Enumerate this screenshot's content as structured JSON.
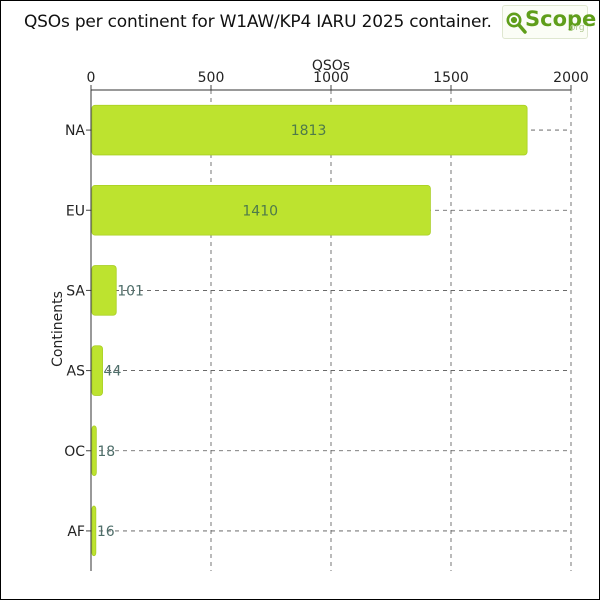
{
  "header": {
    "title": "QSOs per continent for W1AW/KP4 IARU 2025 container.",
    "logo_text": "Scope",
    "logo_suffix": ".org",
    "logo_icon": "magnifier-q-icon"
  },
  "colors": {
    "bar": "#bde32f",
    "bar_stroke": "#a8cf22",
    "grid": "#555555",
    "label_inside": "#4e7a4a",
    "label_outside": "#4f6e6a"
  },
  "chart_data": {
    "type": "bar",
    "orientation": "horizontal",
    "title": "QSOs per continent for W1AW/KP4 IARU 2025 container.",
    "xlabel": "QSOs",
    "ylabel": "Continents",
    "categories": [
      "NA",
      "EU",
      "SA",
      "AS",
      "OC",
      "AF"
    ],
    "values": [
      1813,
      1410,
      101,
      44,
      18,
      16
    ],
    "xlim": [
      0,
      2000
    ],
    "xticks": [
      0,
      500,
      1000,
      1500,
      2000
    ],
    "grid": true,
    "xaxis_position": "top"
  }
}
